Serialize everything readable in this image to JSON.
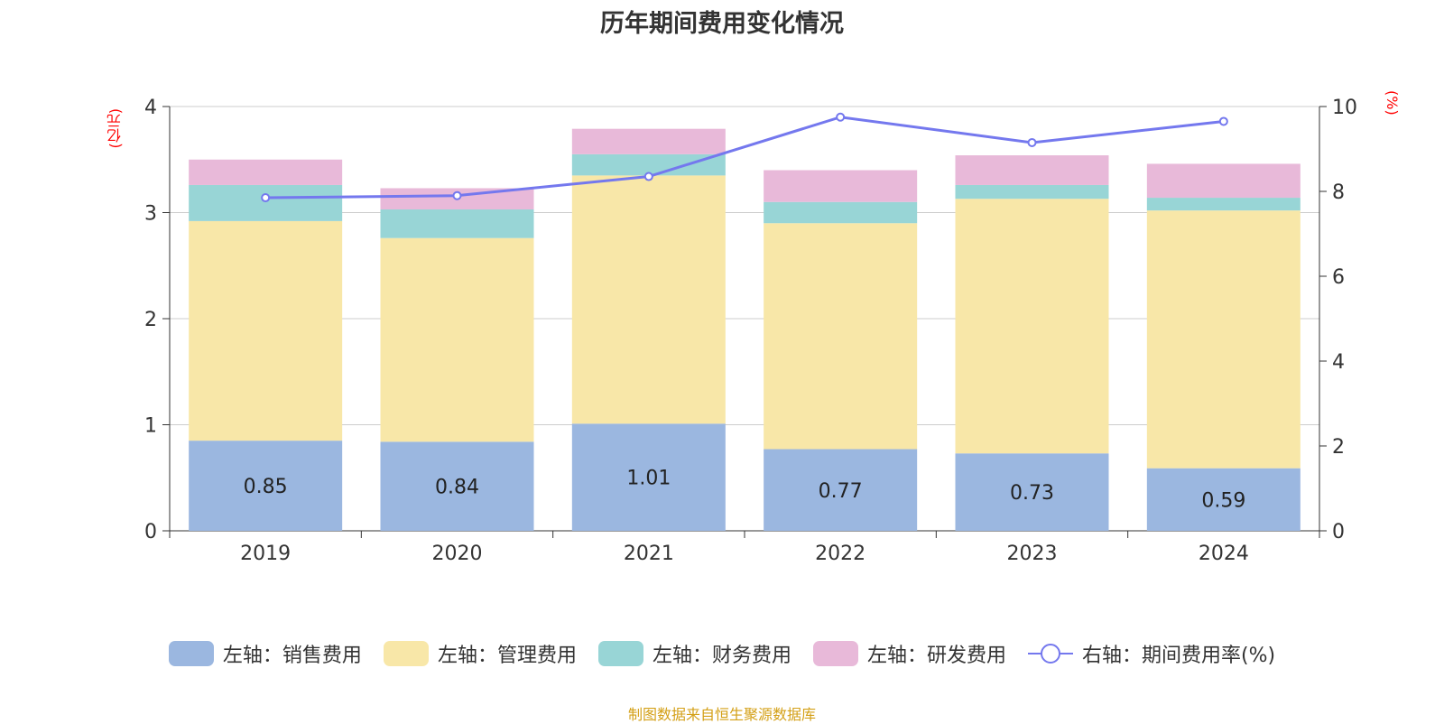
{
  "chart_data": {
    "type": "bar",
    "title": "历年期间费用变化情况",
    "left_axis_unit": "(亿元)",
    "right_axis_unit": "(%)",
    "categories": [
      "2019",
      "2020",
      "2021",
      "2022",
      "2023",
      "2024"
    ],
    "ylim_left": [
      0,
      4
    ],
    "ylim_right": [
      0,
      10
    ],
    "yticks_left": [
      "0",
      "1",
      "2",
      "3",
      "4"
    ],
    "yticks_right": [
      "0",
      "2",
      "4",
      "6",
      "8",
      "10"
    ],
    "grid": true,
    "legend_position": "bottom",
    "series": [
      {
        "name": "左轴：销售费用",
        "type": "bar",
        "color": "#9bb7e0",
        "values": [
          0.85,
          0.84,
          1.01,
          0.77,
          0.73,
          0.59
        ],
        "labels": [
          "0.85",
          "0.84",
          "1.01",
          "0.77",
          "0.73",
          "0.59"
        ]
      },
      {
        "name": "左轴：管理费用",
        "type": "bar",
        "color": "#f8e7a8",
        "values": [
          2.07,
          1.92,
          2.34,
          2.13,
          2.4,
          2.43
        ]
      },
      {
        "name": "左轴：财务费用",
        "type": "bar",
        "color": "#98d5d6",
        "values": [
          0.34,
          0.27,
          0.2,
          0.2,
          0.13,
          0.12
        ]
      },
      {
        "name": "左轴：研发费用",
        "type": "bar",
        "color": "#e8b9d9",
        "values": [
          0.24,
          0.2,
          0.24,
          0.3,
          0.28,
          0.32
        ]
      },
      {
        "name": "右轴：期间费用率(%)",
        "type": "line",
        "color": "#7478ee",
        "values": [
          7.85,
          7.9,
          8.35,
          9.75,
          9.15,
          9.65
        ]
      }
    ]
  },
  "footer": {
    "source": "制图数据来自恒生聚源数据库"
  }
}
